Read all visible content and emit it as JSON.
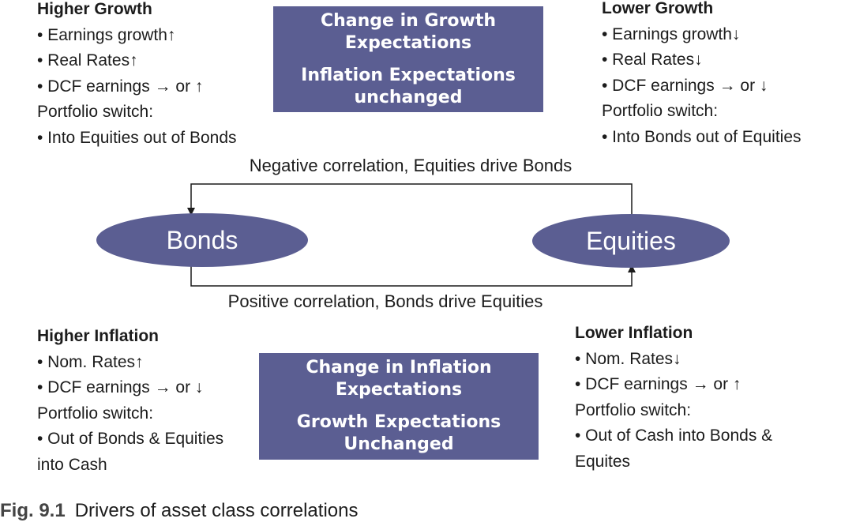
{
  "higher_growth": {
    "title": "Higher Growth",
    "lines": [
      "• Earnings growth↑",
      "• Real Rates↑",
      "• DCF earnings → or ↑",
      "Portfolio switch:",
      "• Into Equities out of Bonds"
    ]
  },
  "lower_growth": {
    "title": "Lower Growth",
    "lines": [
      "• Earnings growth↓",
      "• Real Rates↓",
      "• DCF earnings → or ↓",
      "Portfolio switch:",
      "• Into Bonds out of Equities"
    ]
  },
  "growth_box": {
    "line1": "Change in Growth",
    "line2": "Expectations",
    "line3": "Inflation Expectations",
    "line4": "unchanged"
  },
  "negative_correlation": "Negative correlation, Equities drive Bonds",
  "positive_correlation": "Positive correlation, Bonds drive Equities",
  "bonds_label": "Bonds",
  "equities_label": "Equities",
  "higher_inflation": {
    "title": "Higher Inflation",
    "lines": [
      "• Nom. Rates↑",
      "• DCF earnings → or ↓",
      "Portfolio switch:",
      "• Out of Bonds & Equities",
      "into Cash"
    ]
  },
  "lower_inflation": {
    "title": "Lower Inflation",
    "lines": [
      "• Nom. Rates↓",
      "• DCF earnings → or ↑",
      "Portfolio switch:",
      "• Out of Cash into Bonds &",
      "Equites"
    ]
  },
  "inflation_box": {
    "line1": "Change in Inflation",
    "line2": "Expectations",
    "line3": "Growth Expectations",
    "line4": "Unchanged"
  },
  "caption": {
    "label": "Fig. 9.1",
    "text": "Drivers of asset class correlations"
  },
  "colors": {
    "box": "#5b5e92",
    "text": "#1c1c1c"
  }
}
